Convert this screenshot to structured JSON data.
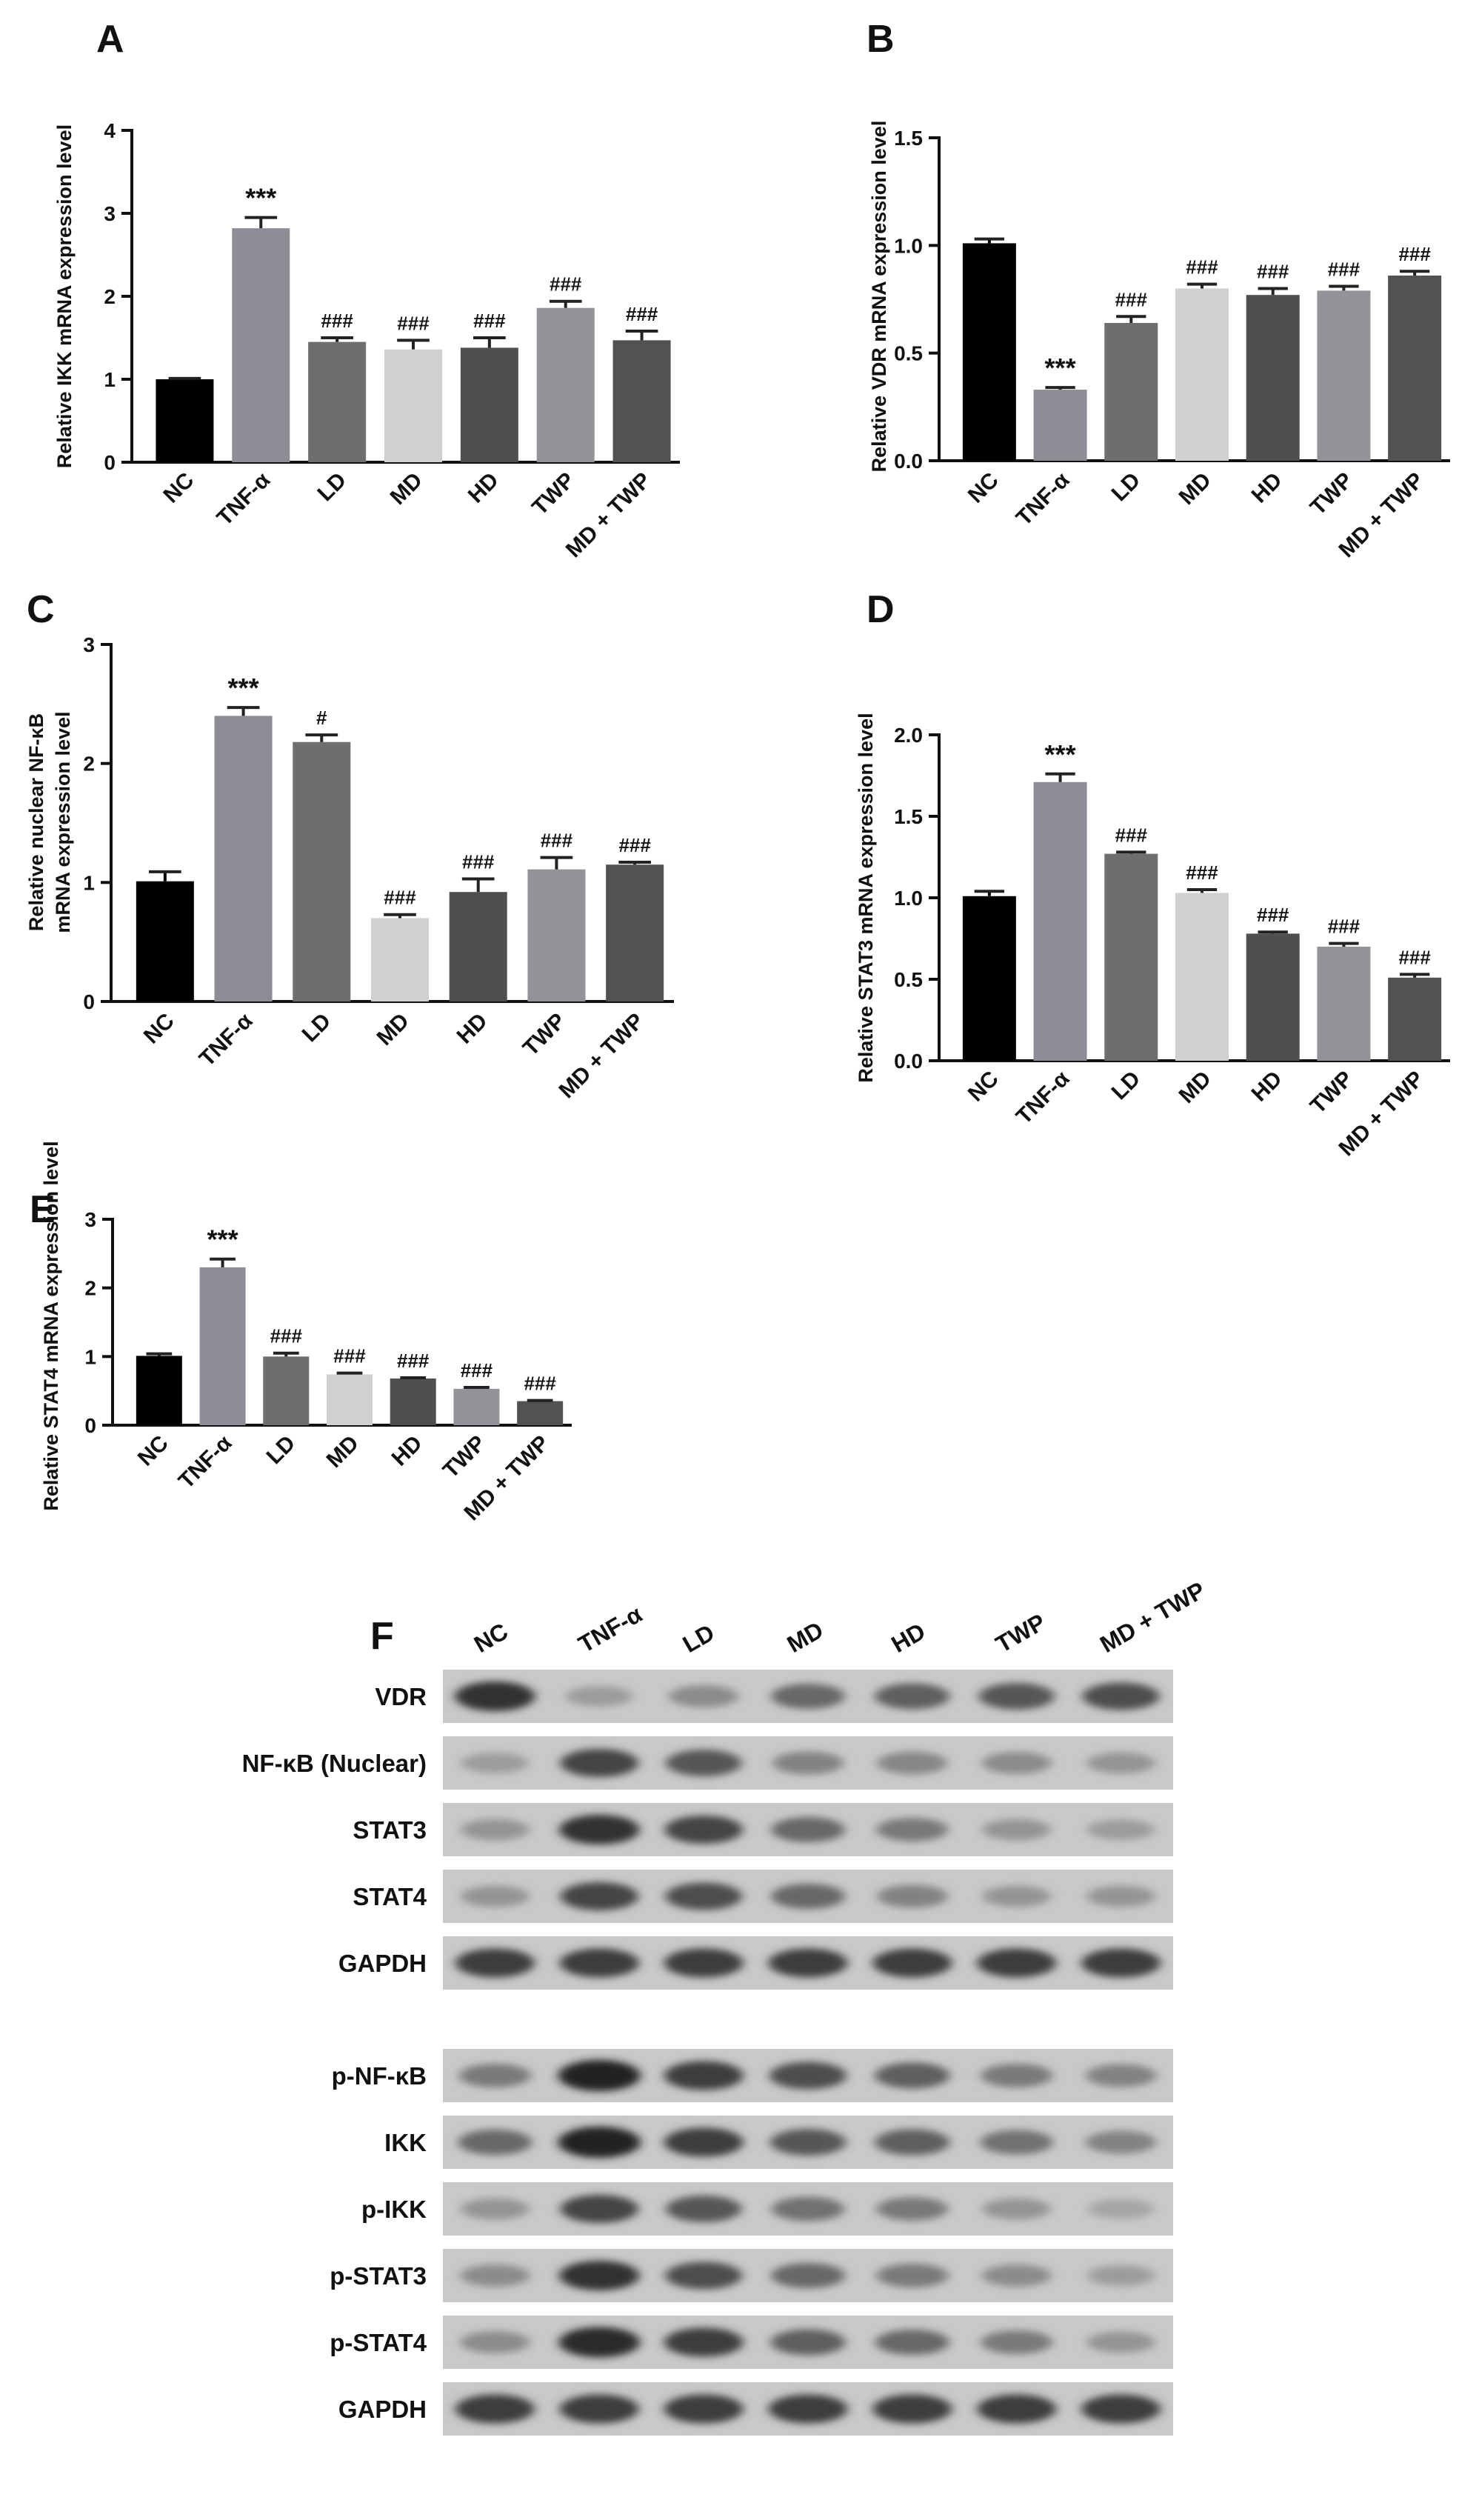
{
  "chart_data": [
    {
      "panel": "A",
      "type": "bar",
      "categories": [
        "NC",
        "TNF-α",
        "LD",
        "MD",
        "HD",
        "TWP",
        "MD + TWP"
      ],
      "values": [
        1.0,
        2.82,
        1.45,
        1.36,
        1.38,
        1.86,
        1.47
      ],
      "errors": [
        0.01,
        0.13,
        0.05,
        0.11,
        0.12,
        0.08,
        0.11
      ],
      "significance": [
        "",
        "***",
        "###",
        "###",
        "###",
        "###",
        "###"
      ],
      "ylabel": "Relative IKK mRNA expression level",
      "ylim": [
        0,
        4
      ],
      "yticks": [
        "0",
        "1",
        "2",
        "3",
        "4"
      ]
    },
    {
      "panel": "B",
      "type": "bar",
      "categories": [
        "NC",
        "TNF-α",
        "LD",
        "MD",
        "HD",
        "TWP",
        "MD + TWP"
      ],
      "values": [
        1.01,
        0.33,
        0.64,
        0.8,
        0.77,
        0.79,
        0.86
      ],
      "errors": [
        0.02,
        0.01,
        0.03,
        0.02,
        0.03,
        0.02,
        0.02
      ],
      "significance": [
        "",
        "***",
        "###",
        "###",
        "###",
        "###",
        "###"
      ],
      "ylabel": "Relative VDR mRNA expression level",
      "ylim": [
        0,
        1.5
      ],
      "yticks": [
        "0.0",
        "0.5",
        "1.0",
        "1.5"
      ]
    },
    {
      "panel": "C",
      "type": "bar",
      "categories": [
        "NC",
        "TNF-α",
        "LD",
        "MD",
        "HD",
        "TWP",
        "MD + TWP"
      ],
      "values": [
        1.01,
        2.4,
        2.18,
        0.7,
        0.92,
        1.11,
        1.15
      ],
      "errors": [
        0.08,
        0.07,
        0.06,
        0.03,
        0.11,
        0.1,
        0.02
      ],
      "significance": [
        "",
        "***",
        "#",
        "###",
        "###",
        "###",
        "###"
      ],
      "ylabel_line1": "Relative nuclear NF-κB",
      "ylabel_line2": "mRNA expression level",
      "ylim": [
        0,
        3
      ],
      "yticks": [
        "0",
        "1",
        "2",
        "3"
      ]
    },
    {
      "panel": "D",
      "type": "bar",
      "categories": [
        "NC",
        "TNF-α",
        "LD",
        "MD",
        "HD",
        "TWP",
        "MD + TWP"
      ],
      "values": [
        1.01,
        1.71,
        1.27,
        1.03,
        0.78,
        0.7,
        0.51
      ],
      "errors": [
        0.03,
        0.05,
        0.01,
        0.02,
        0.01,
        0.02,
        0.02
      ],
      "significance": [
        "",
        "***",
        "###",
        "###",
        "###",
        "###",
        "###"
      ],
      "ylabel": "Relative STAT3 mRNA expression level",
      "ylim": [
        0,
        2.0
      ],
      "yticks": [
        "0.0",
        "0.5",
        "1.0",
        "1.5",
        "2.0"
      ]
    },
    {
      "panel": "E",
      "type": "bar",
      "categories": [
        "NC",
        "TNF-α",
        "LD",
        "MD",
        "HD",
        "TWP",
        "MD + TWP"
      ],
      "values": [
        1.01,
        2.3,
        1.0,
        0.74,
        0.68,
        0.53,
        0.35
      ],
      "errors": [
        0.03,
        0.12,
        0.05,
        0.02,
        0.01,
        0.02,
        0.01
      ],
      "significance": [
        "",
        "***",
        "###",
        "###",
        "###",
        "###",
        "###"
      ],
      "ylabel": "Relative STAT4 mRNA expression level",
      "ylim": [
        0,
        3
      ],
      "yticks": [
        "0",
        "1",
        "2",
        "3"
      ]
    }
  ],
  "bar_colors": [
    "#000000",
    "#8d8d96",
    "#6e6e70",
    "#d0d0d0",
    "#4f4f4f",
    "#939399",
    "#525252"
  ],
  "blot": {
    "panel": "F",
    "lanes": [
      "NC",
      "TNF-α",
      "LD",
      "MD",
      "HD",
      "TWP",
      "MD + TWP"
    ],
    "group1": [
      {
        "label": "VDR",
        "intensity": [
          0.85,
          0.25,
          0.35,
          0.55,
          0.6,
          0.65,
          0.7
        ]
      },
      {
        "label": "NF-κB (Nuclear)",
        "intensity": [
          0.25,
          0.75,
          0.65,
          0.4,
          0.38,
          0.35,
          0.3
        ]
      },
      {
        "label": "STAT3",
        "intensity": [
          0.3,
          0.85,
          0.75,
          0.55,
          0.45,
          0.3,
          0.25
        ]
      },
      {
        "label": "STAT4",
        "intensity": [
          0.3,
          0.75,
          0.7,
          0.55,
          0.4,
          0.3,
          0.3
        ]
      },
      {
        "label": "GAPDH",
        "intensity": [
          0.8,
          0.8,
          0.8,
          0.8,
          0.8,
          0.8,
          0.8
        ]
      }
    ],
    "group2": [
      {
        "label": "p-NF-κB",
        "intensity": [
          0.45,
          0.95,
          0.8,
          0.7,
          0.6,
          0.45,
          0.4
        ]
      },
      {
        "label": "IKK",
        "intensity": [
          0.55,
          0.95,
          0.8,
          0.65,
          0.6,
          0.5,
          0.4
        ]
      },
      {
        "label": "p-IKK",
        "intensity": [
          0.3,
          0.75,
          0.65,
          0.5,
          0.45,
          0.3,
          0.2
        ]
      },
      {
        "label": "p-STAT3",
        "intensity": [
          0.35,
          0.85,
          0.7,
          0.55,
          0.45,
          0.35,
          0.25
        ]
      },
      {
        "label": "p-STAT4",
        "intensity": [
          0.35,
          0.9,
          0.8,
          0.6,
          0.55,
          0.45,
          0.3
        ]
      },
      {
        "label": "GAPDH",
        "intensity": [
          0.8,
          0.8,
          0.8,
          0.8,
          0.8,
          0.8,
          0.8
        ]
      }
    ]
  }
}
